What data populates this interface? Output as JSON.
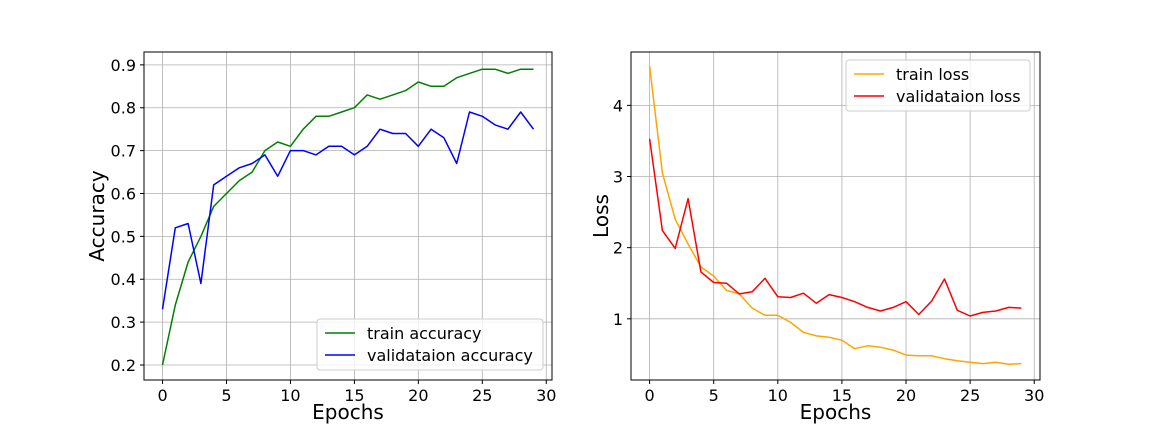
{
  "chart_data": [
    {
      "type": "line",
      "xlabel": "Epochs",
      "ylabel": "Accuracy",
      "xlim": [
        -1.45,
        30.45
      ],
      "ylim": [
        0.165,
        0.93
      ],
      "xticks": [
        0,
        5,
        10,
        15,
        20,
        25,
        30
      ],
      "yticks": [
        0.2,
        0.3,
        0.4,
        0.5,
        0.6,
        0.7,
        0.8,
        0.9
      ],
      "ytick_labels": [
        "0.2",
        "0.3",
        "0.4",
        "0.5",
        "0.6",
        "0.7",
        "0.8",
        "0.9"
      ],
      "grid": true,
      "legend_position": "lower-right",
      "x": [
        0,
        1,
        2,
        3,
        4,
        5,
        6,
        7,
        8,
        9,
        10,
        11,
        12,
        13,
        14,
        15,
        16,
        17,
        18,
        19,
        20,
        21,
        22,
        23,
        24,
        25,
        26,
        27,
        28,
        29
      ],
      "series": [
        {
          "name": "train accuracy",
          "color": "#008000",
          "values": [
            0.2,
            0.34,
            0.44,
            0.5,
            0.57,
            0.6,
            0.63,
            0.65,
            0.7,
            0.72,
            0.71,
            0.75,
            0.78,
            0.78,
            0.79,
            0.8,
            0.83,
            0.82,
            0.83,
            0.84,
            0.86,
            0.85,
            0.85,
            0.87,
            0.88,
            0.89,
            0.89,
            0.88,
            0.89,
            0.89
          ]
        },
        {
          "name": "validataion accuracy",
          "color": "#0000ff",
          "values": [
            0.33,
            0.52,
            0.53,
            0.39,
            0.62,
            0.64,
            0.66,
            0.67,
            0.69,
            0.64,
            0.7,
            0.7,
            0.69,
            0.71,
            0.71,
            0.69,
            0.71,
            0.75,
            0.74,
            0.74,
            0.71,
            0.75,
            0.73,
            0.67,
            0.79,
            0.78,
            0.76,
            0.75,
            0.79,
            0.75
          ]
        }
      ]
    },
    {
      "type": "line",
      "xlabel": "Epochs",
      "ylabel": "Loss",
      "xlim": [
        -1.45,
        30.45
      ],
      "ylim": [
        0.14,
        4.75
      ],
      "xticks": [
        0,
        5,
        10,
        15,
        20,
        25,
        30
      ],
      "yticks": [
        1,
        2,
        3,
        4
      ],
      "ytick_labels": [
        "1",
        "2",
        "3",
        "4"
      ],
      "grid": true,
      "legend_position": "upper-right",
      "x": [
        0,
        1,
        2,
        3,
        4,
        5,
        6,
        7,
        8,
        9,
        10,
        11,
        12,
        13,
        14,
        15,
        16,
        17,
        18,
        19,
        20,
        21,
        22,
        23,
        24,
        25,
        26,
        27,
        28,
        29
      ],
      "series": [
        {
          "name": "train loss",
          "color": "#ffa500",
          "values": [
            4.55,
            3.05,
            2.4,
            2.05,
            1.73,
            1.6,
            1.4,
            1.35,
            1.15,
            1.05,
            1.05,
            0.95,
            0.81,
            0.76,
            0.74,
            0.7,
            0.58,
            0.62,
            0.6,
            0.56,
            0.49,
            0.48,
            0.48,
            0.44,
            0.41,
            0.39,
            0.37,
            0.39,
            0.36,
            0.37
          ]
        },
        {
          "name": "validataion loss",
          "color": "#ff0000",
          "values": [
            3.53,
            2.24,
            1.99,
            2.69,
            1.66,
            1.51,
            1.5,
            1.35,
            1.38,
            1.57,
            1.31,
            1.3,
            1.36,
            1.22,
            1.34,
            1.3,
            1.24,
            1.16,
            1.11,
            1.16,
            1.24,
            1.06,
            1.25,
            1.56,
            1.12,
            1.04,
            1.09,
            1.11,
            1.16,
            1.15
          ]
        }
      ]
    }
  ]
}
